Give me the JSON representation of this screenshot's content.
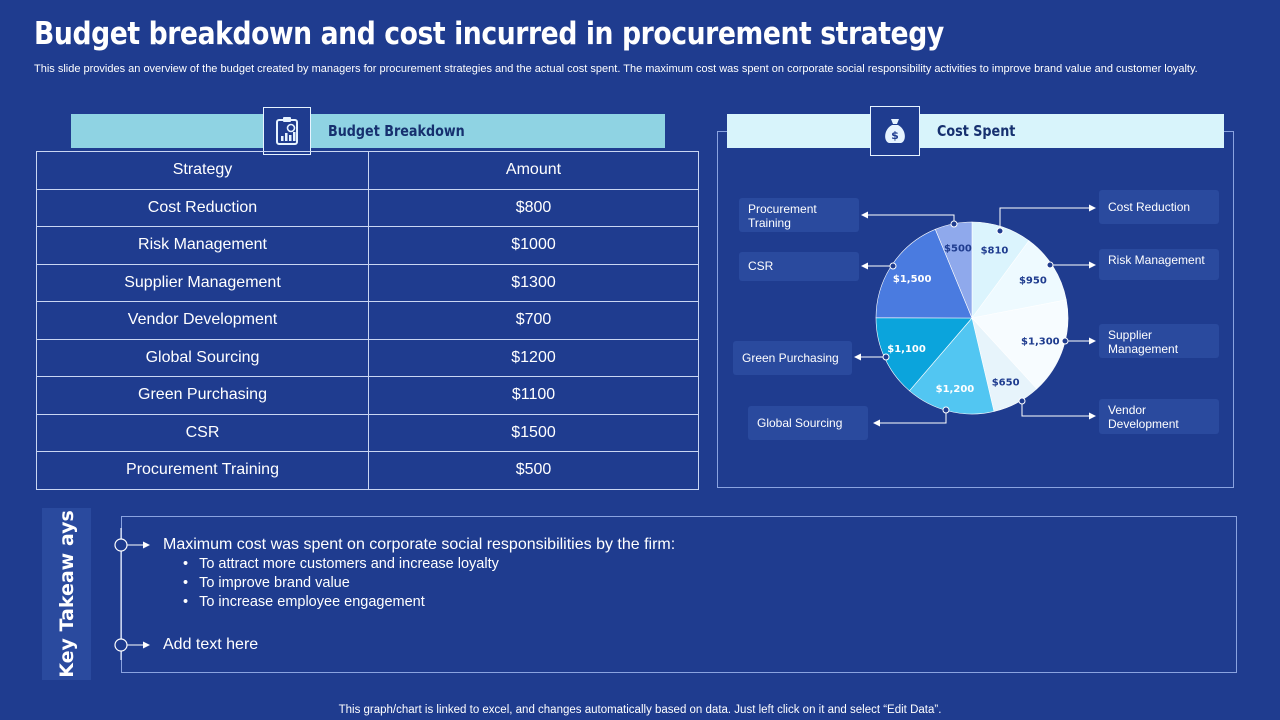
{
  "title": "Budget breakdown and cost incurred in procurement strategy",
  "subtitle": "This slide provides an overview of the budget created by managers for procurement strategies and the actual cost spent. The maximum cost was spent on corporate social responsibility activities to improve brand value and customer loyalty.",
  "budget": {
    "header": "Budget Breakdown",
    "icon": "report-clipboard-icon",
    "columns": [
      "Strategy",
      "Amount"
    ],
    "rows": [
      {
        "strategy": "Cost Reduction",
        "amount": "$800"
      },
      {
        "strategy": "Risk Management",
        "amount": "$1000"
      },
      {
        "strategy": "Supplier Management",
        "amount": "$1300"
      },
      {
        "strategy": "Vendor Development",
        "amount": "$700"
      },
      {
        "strategy": "Global Sourcing",
        "amount": "$1200"
      },
      {
        "strategy": "Green Purchasing",
        "amount": "$1100"
      },
      {
        "strategy": "CSR",
        "amount": "$1500"
      },
      {
        "strategy": "Procurement Training",
        "amount": "$500"
      }
    ]
  },
  "cost": {
    "header": "Cost Spent",
    "icon": "money-bag-icon",
    "callouts": {
      "procurement_training": "Procurement Training",
      "csr": "CSR",
      "green_purchasing": "Green Purchasing",
      "global_sourcing": "Global Sourcing",
      "cost_reduction": "Cost Reduction",
      "risk_management": "Risk Management",
      "supplier_management": "Supplier Management",
      "vendor_development": "Vendor Development"
    }
  },
  "chart_data": {
    "type": "pie",
    "labels": [
      "Cost Reduction",
      "Risk Management",
      "Supplier Management",
      "Vendor Development",
      "Global Sourcing",
      "Green Purchasing",
      "CSR",
      "Procurement Training"
    ],
    "values": [
      810,
      950,
      1300,
      650,
      1200,
      1100,
      1500,
      500
    ],
    "value_labels": [
      "$810",
      "$950",
      "$1,300",
      "$650",
      "$1,200",
      "$1,100",
      "$1,500",
      "$500"
    ],
    "colors": [
      "#dbf4fd",
      "#eefaff",
      "#f7fcff",
      "#e7f4fb",
      "#52c6f2",
      "#0ba4dc",
      "#4a7be0",
      "#8fa9ec"
    ],
    "label_colors": [
      "#1f3c8f",
      "#1f3c8f",
      "#1f3c8f",
      "#1f3c8f",
      "#ffffff",
      "#ffffff",
      "#ffffff",
      "#1f3c8f"
    ]
  },
  "takeaways": {
    "tab_label": "Key Takeaw ays",
    "main": "Maximum cost was spent on corporate social responsibilities by the firm:",
    "bullets": [
      "To attract more customers and increase loyalty",
      "To improve brand value",
      "To increase employee engagement"
    ],
    "second": "Add text here"
  },
  "footer": "This graph/chart is linked to excel, and changes automatically based on data. Just left click on it and select “Edit Data”."
}
